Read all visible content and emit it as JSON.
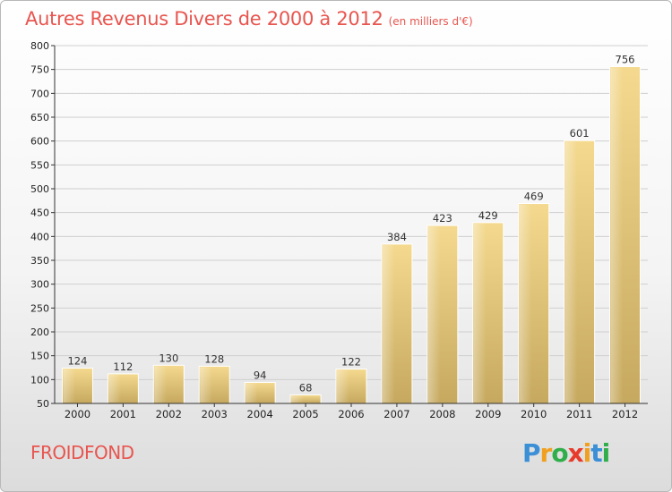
{
  "chart_data": {
    "type": "bar",
    "title": "Autres Revenus Divers de 2000 à 2012",
    "subtitle": "(en milliers d'€)",
    "categories": [
      "2000",
      "2001",
      "2002",
      "2003",
      "2004",
      "2005",
      "2006",
      "2007",
      "2008",
      "2009",
      "2010",
      "2011",
      "2012"
    ],
    "values": [
      124,
      112,
      130,
      128,
      94,
      68,
      122,
      384,
      423,
      429,
      469,
      601,
      756
    ],
    "ylim": [
      50,
      800
    ],
    "yticks": [
      50,
      100,
      150,
      200,
      250,
      300,
      350,
      400,
      450,
      500,
      550,
      600,
      650,
      700,
      750,
      800
    ],
    "grid": true,
    "bar_color": "#e8c87a"
  },
  "footer": {
    "place": "FROIDFOND",
    "logo_letters": [
      "P",
      "r",
      "o",
      "x",
      "i",
      "t",
      "i"
    ],
    "logo_colors": [
      "#3a8fd6",
      "#f0a020",
      "#2fae4a",
      "#e83a2a",
      "#f0a020",
      "#3a8fd6",
      "#2fae4a"
    ]
  }
}
